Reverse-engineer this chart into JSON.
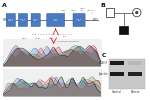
{
  "background_color": "#ffffff",
  "panel_a": {
    "gene_line_color": "#777777",
    "exon_color": "#4a7abf",
    "exon_border": "#2a5a9a",
    "arrow_color": "#cc0000",
    "label_color": "#333333"
  },
  "panel_b": {
    "unaffected_male_fill": "#ffffff",
    "unaffected_male_edge": "#444444",
    "carrier_female_fill": "#ffffff",
    "carrier_female_edge": "#444444",
    "affected_male_fill": "#111111",
    "affected_male_edge": "#111111",
    "dot_color": "#444444",
    "line_color": "#444444"
  },
  "panel_c": {
    "wb_background": "#cccccc",
    "lane_labels": [
      "Control",
      "Patient"
    ],
    "row_labels": [
      "SASH3",
      "β-actin"
    ]
  },
  "label_a": "A",
  "label_b": "B",
  "label_c": "C"
}
